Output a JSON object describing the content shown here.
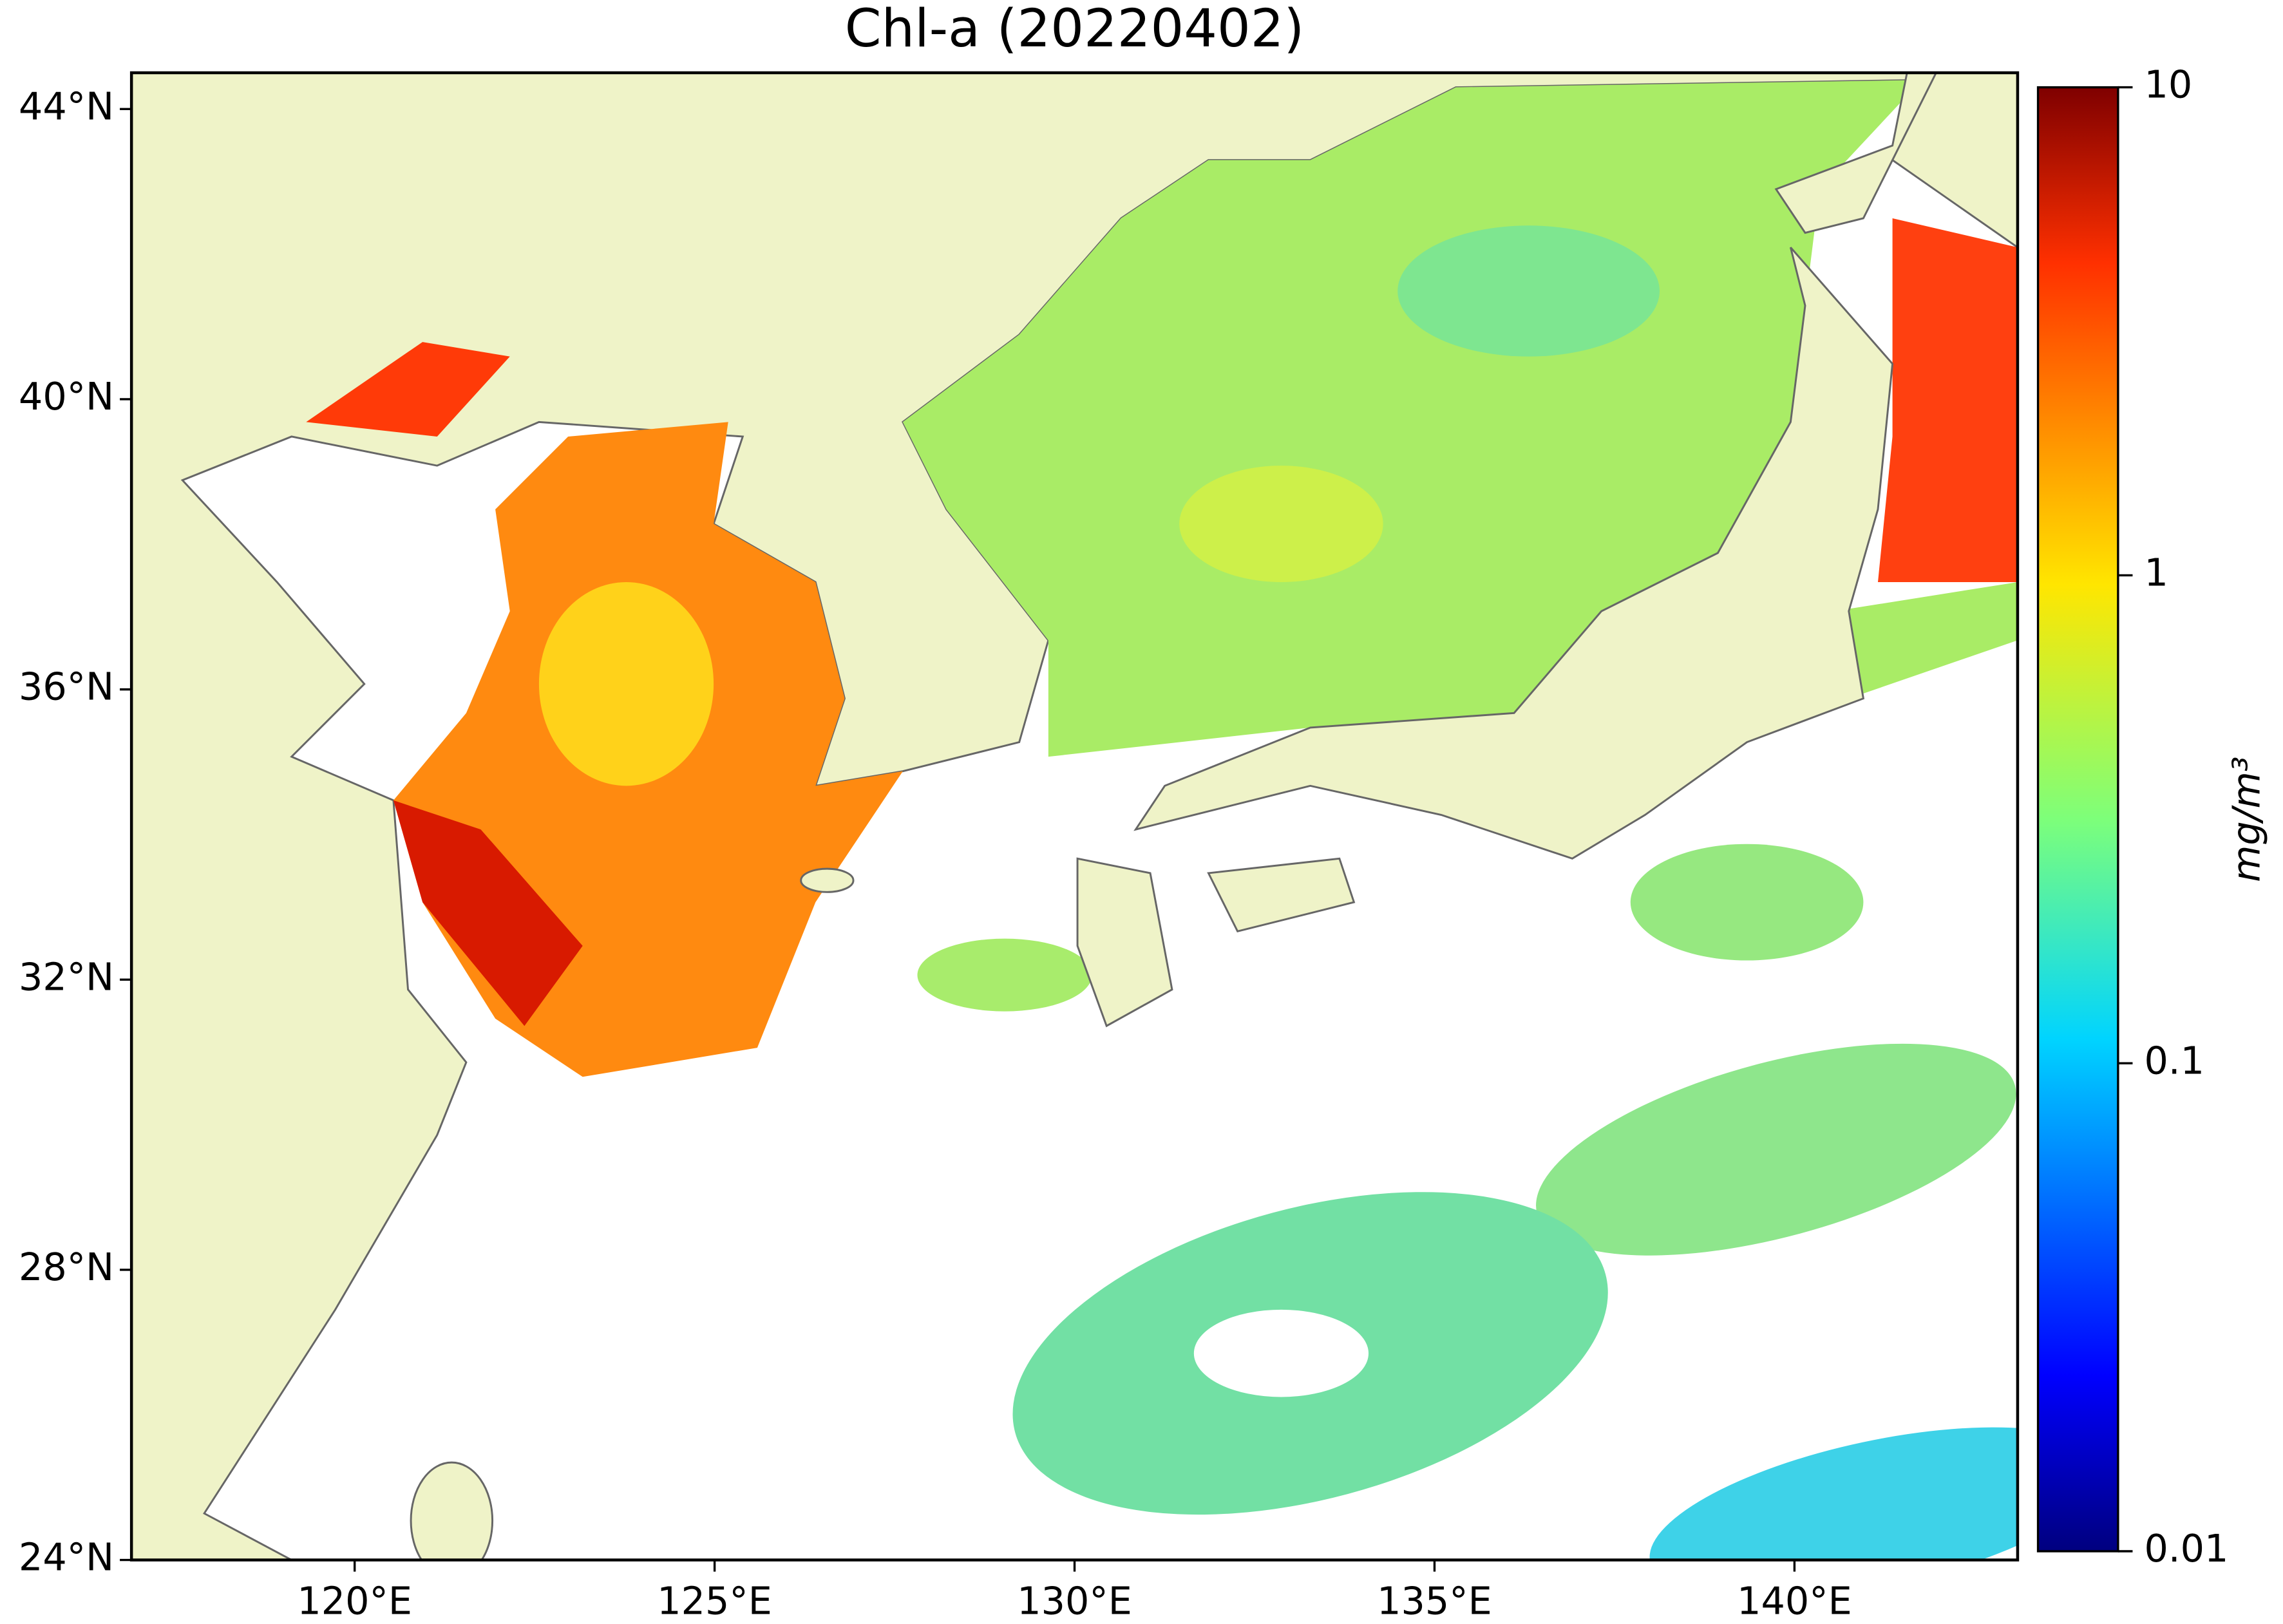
{
  "chart_data": {
    "type": "map",
    "title": "Chl-a (20220402)",
    "xlim": [
      116.9,
      143.1
    ],
    "xticks": [
      {
        "value": 120,
        "label": "120°E"
      },
      {
        "value": 125,
        "label": "125°E"
      },
      {
        "value": 130,
        "label": "130°E"
      },
      {
        "value": 135,
        "label": "135°E"
      },
      {
        "value": 140,
        "label": "140°E"
      }
    ],
    "ylim": [
      24,
      44.5
    ],
    "yticks": [
      {
        "value": 24,
        "label": "24°N"
      },
      {
        "value": 28,
        "label": "28°N"
      },
      {
        "value": 32,
        "label": "32°N"
      },
      {
        "value": 36,
        "label": "36°N"
      },
      {
        "value": 40,
        "label": "40°N"
      },
      {
        "value": 44,
        "label": "44°N"
      }
    ],
    "colorbar": {
      "label": "mg/m³",
      "scale": "log",
      "lim": [
        0.01,
        10
      ],
      "ticks": [
        0.01,
        0.1,
        1,
        10
      ]
    }
  }
}
